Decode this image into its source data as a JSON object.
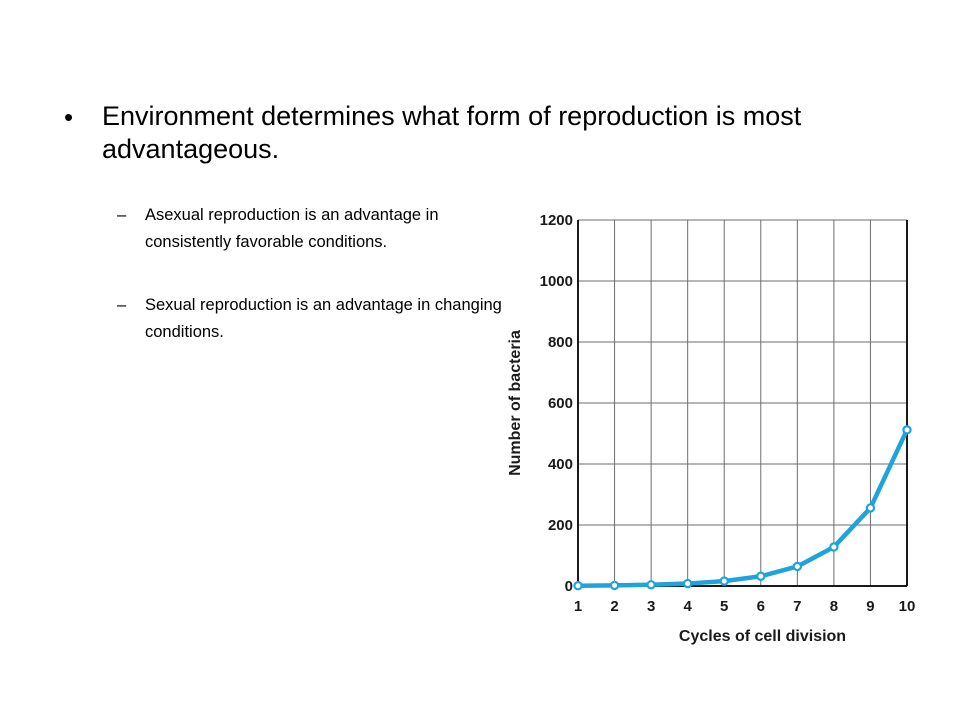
{
  "slide": {
    "bullet": "Environment determines what form of reproduction is most advantageous.",
    "subbullets": [
      "Asexual reproduction is an advantage in consistently favorable conditions.",
      "Sexual reproduction is an advantage in changing conditions."
    ],
    "bullet_marker": "•",
    "sub_marker": "–"
  },
  "chart_data": {
    "type": "line",
    "x": [
      1,
      2,
      3,
      4,
      5,
      6,
      7,
      8,
      9,
      10
    ],
    "series": [
      {
        "values": [
          1,
          2,
          4,
          8,
          16,
          32,
          64,
          128,
          256,
          512
        ]
      }
    ],
    "title": "",
    "xlabel": "Cycles of cell division",
    "ylabel": "Number of bacteria",
    "xlim": [
      1,
      10
    ],
    "ylim": [
      0,
      1200
    ],
    "y_ticks": [
      0,
      200,
      400,
      600,
      800,
      1000,
      1200
    ],
    "x_ticks": [
      1,
      2,
      3,
      4,
      5,
      6,
      7,
      8,
      9,
      10
    ],
    "grid": true,
    "line_color": "#1ea3dc"
  }
}
